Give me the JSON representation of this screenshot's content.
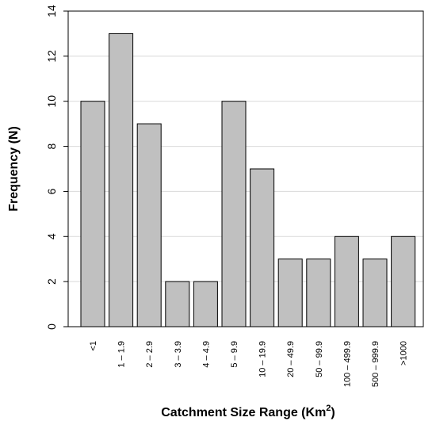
{
  "chart_data": {
    "type": "bar",
    "categories": [
      "<1",
      "1 – 1.9",
      "2 – 2.9",
      "3 – 3.9",
      "4 – 4.9",
      "5 – 9.9",
      "10 – 19.9",
      "20 – 49.9",
      "50 – 99.9",
      "100 – 499.9",
      "500 – 999.9",
      ">1000"
    ],
    "values": [
      10,
      13,
      9,
      2,
      2,
      10,
      7,
      3,
      3,
      4,
      3,
      4
    ],
    "title": "",
    "xlabel_main": "Catchment Size Range (Km",
    "xlabel_sup": "2",
    "xlabel_close": ")",
    "ylabel": "Frequency (N)",
    "ylim": [
      0,
      14
    ],
    "yticks": [
      0,
      2,
      4,
      6,
      8,
      10,
      12,
      14
    ],
    "grid": true,
    "bar_color": "#c0c0c0",
    "bar_stroke": "#000000",
    "grid_color": "#d9d9d9"
  }
}
